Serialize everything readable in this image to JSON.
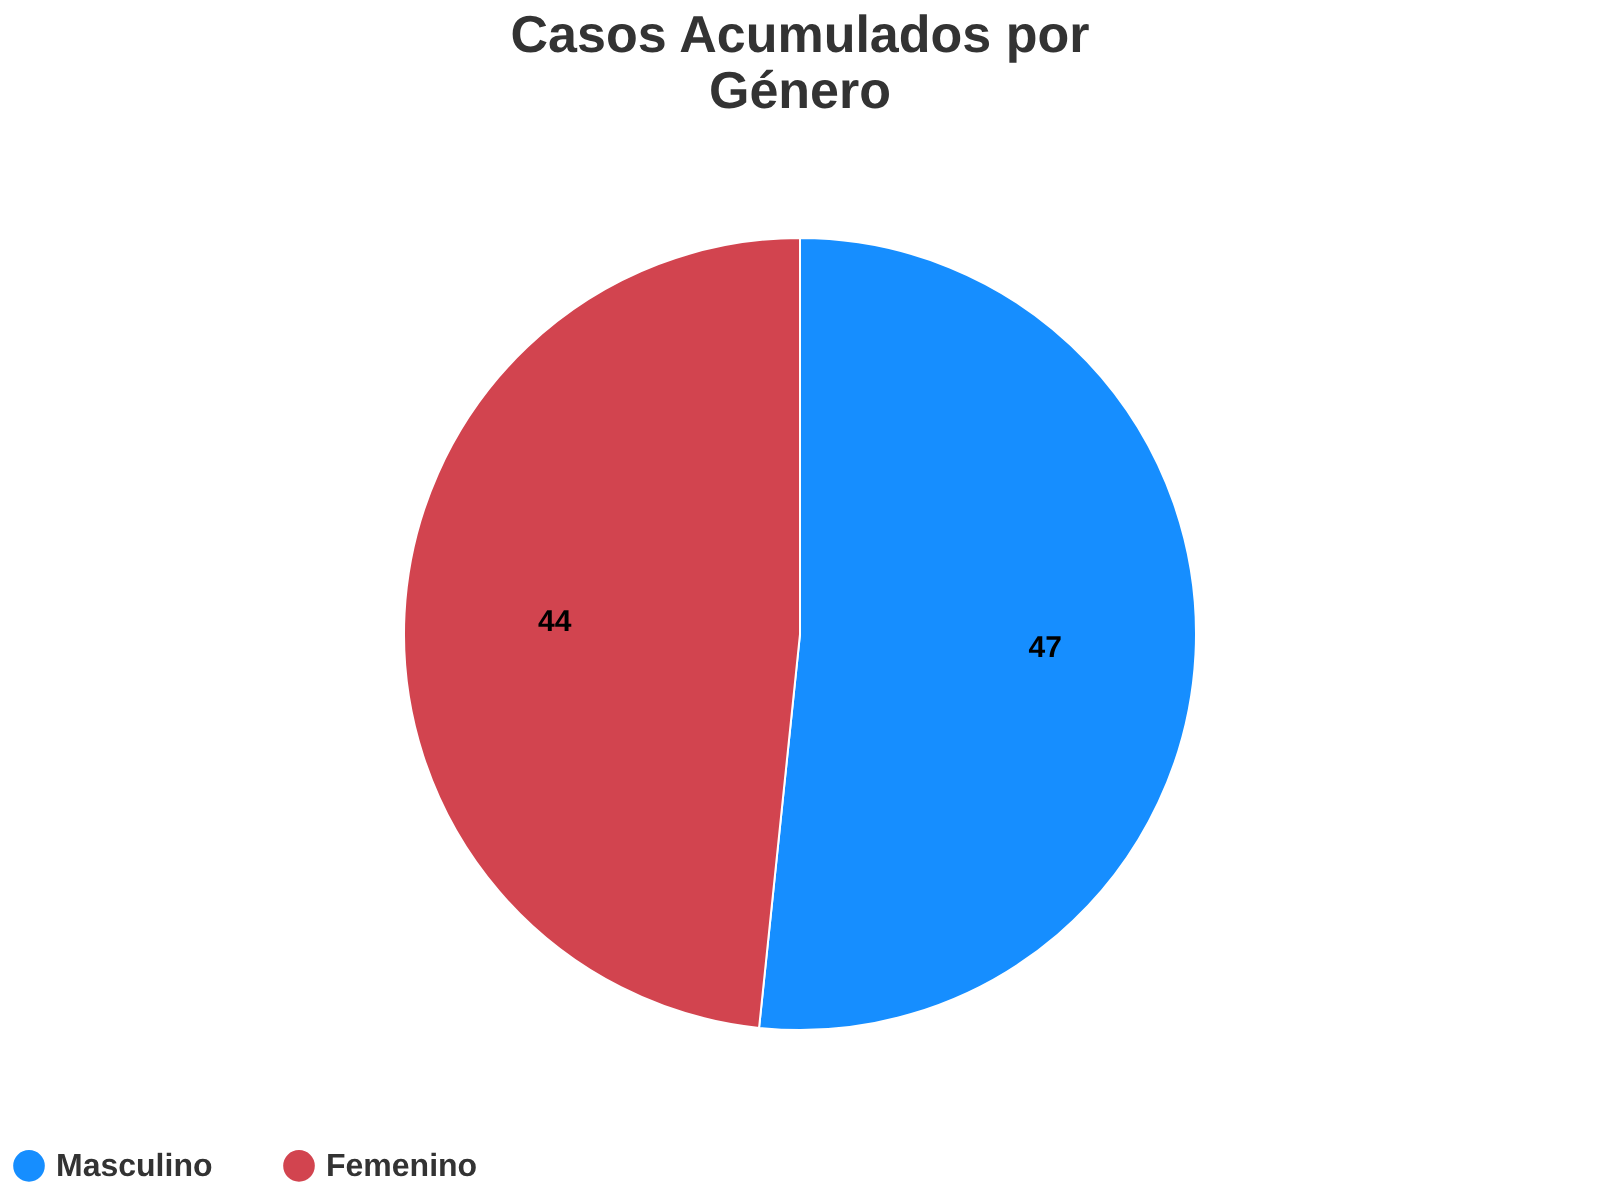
{
  "chart_data": {
    "type": "pie",
    "title": "Casos Acumulados por Género",
    "categories": [
      "Masculino",
      "Femenino"
    ],
    "values": [
      47,
      44
    ],
    "colors": [
      "#168eff",
      "#d2444f"
    ],
    "data_labels": true,
    "legend": "bottom"
  }
}
